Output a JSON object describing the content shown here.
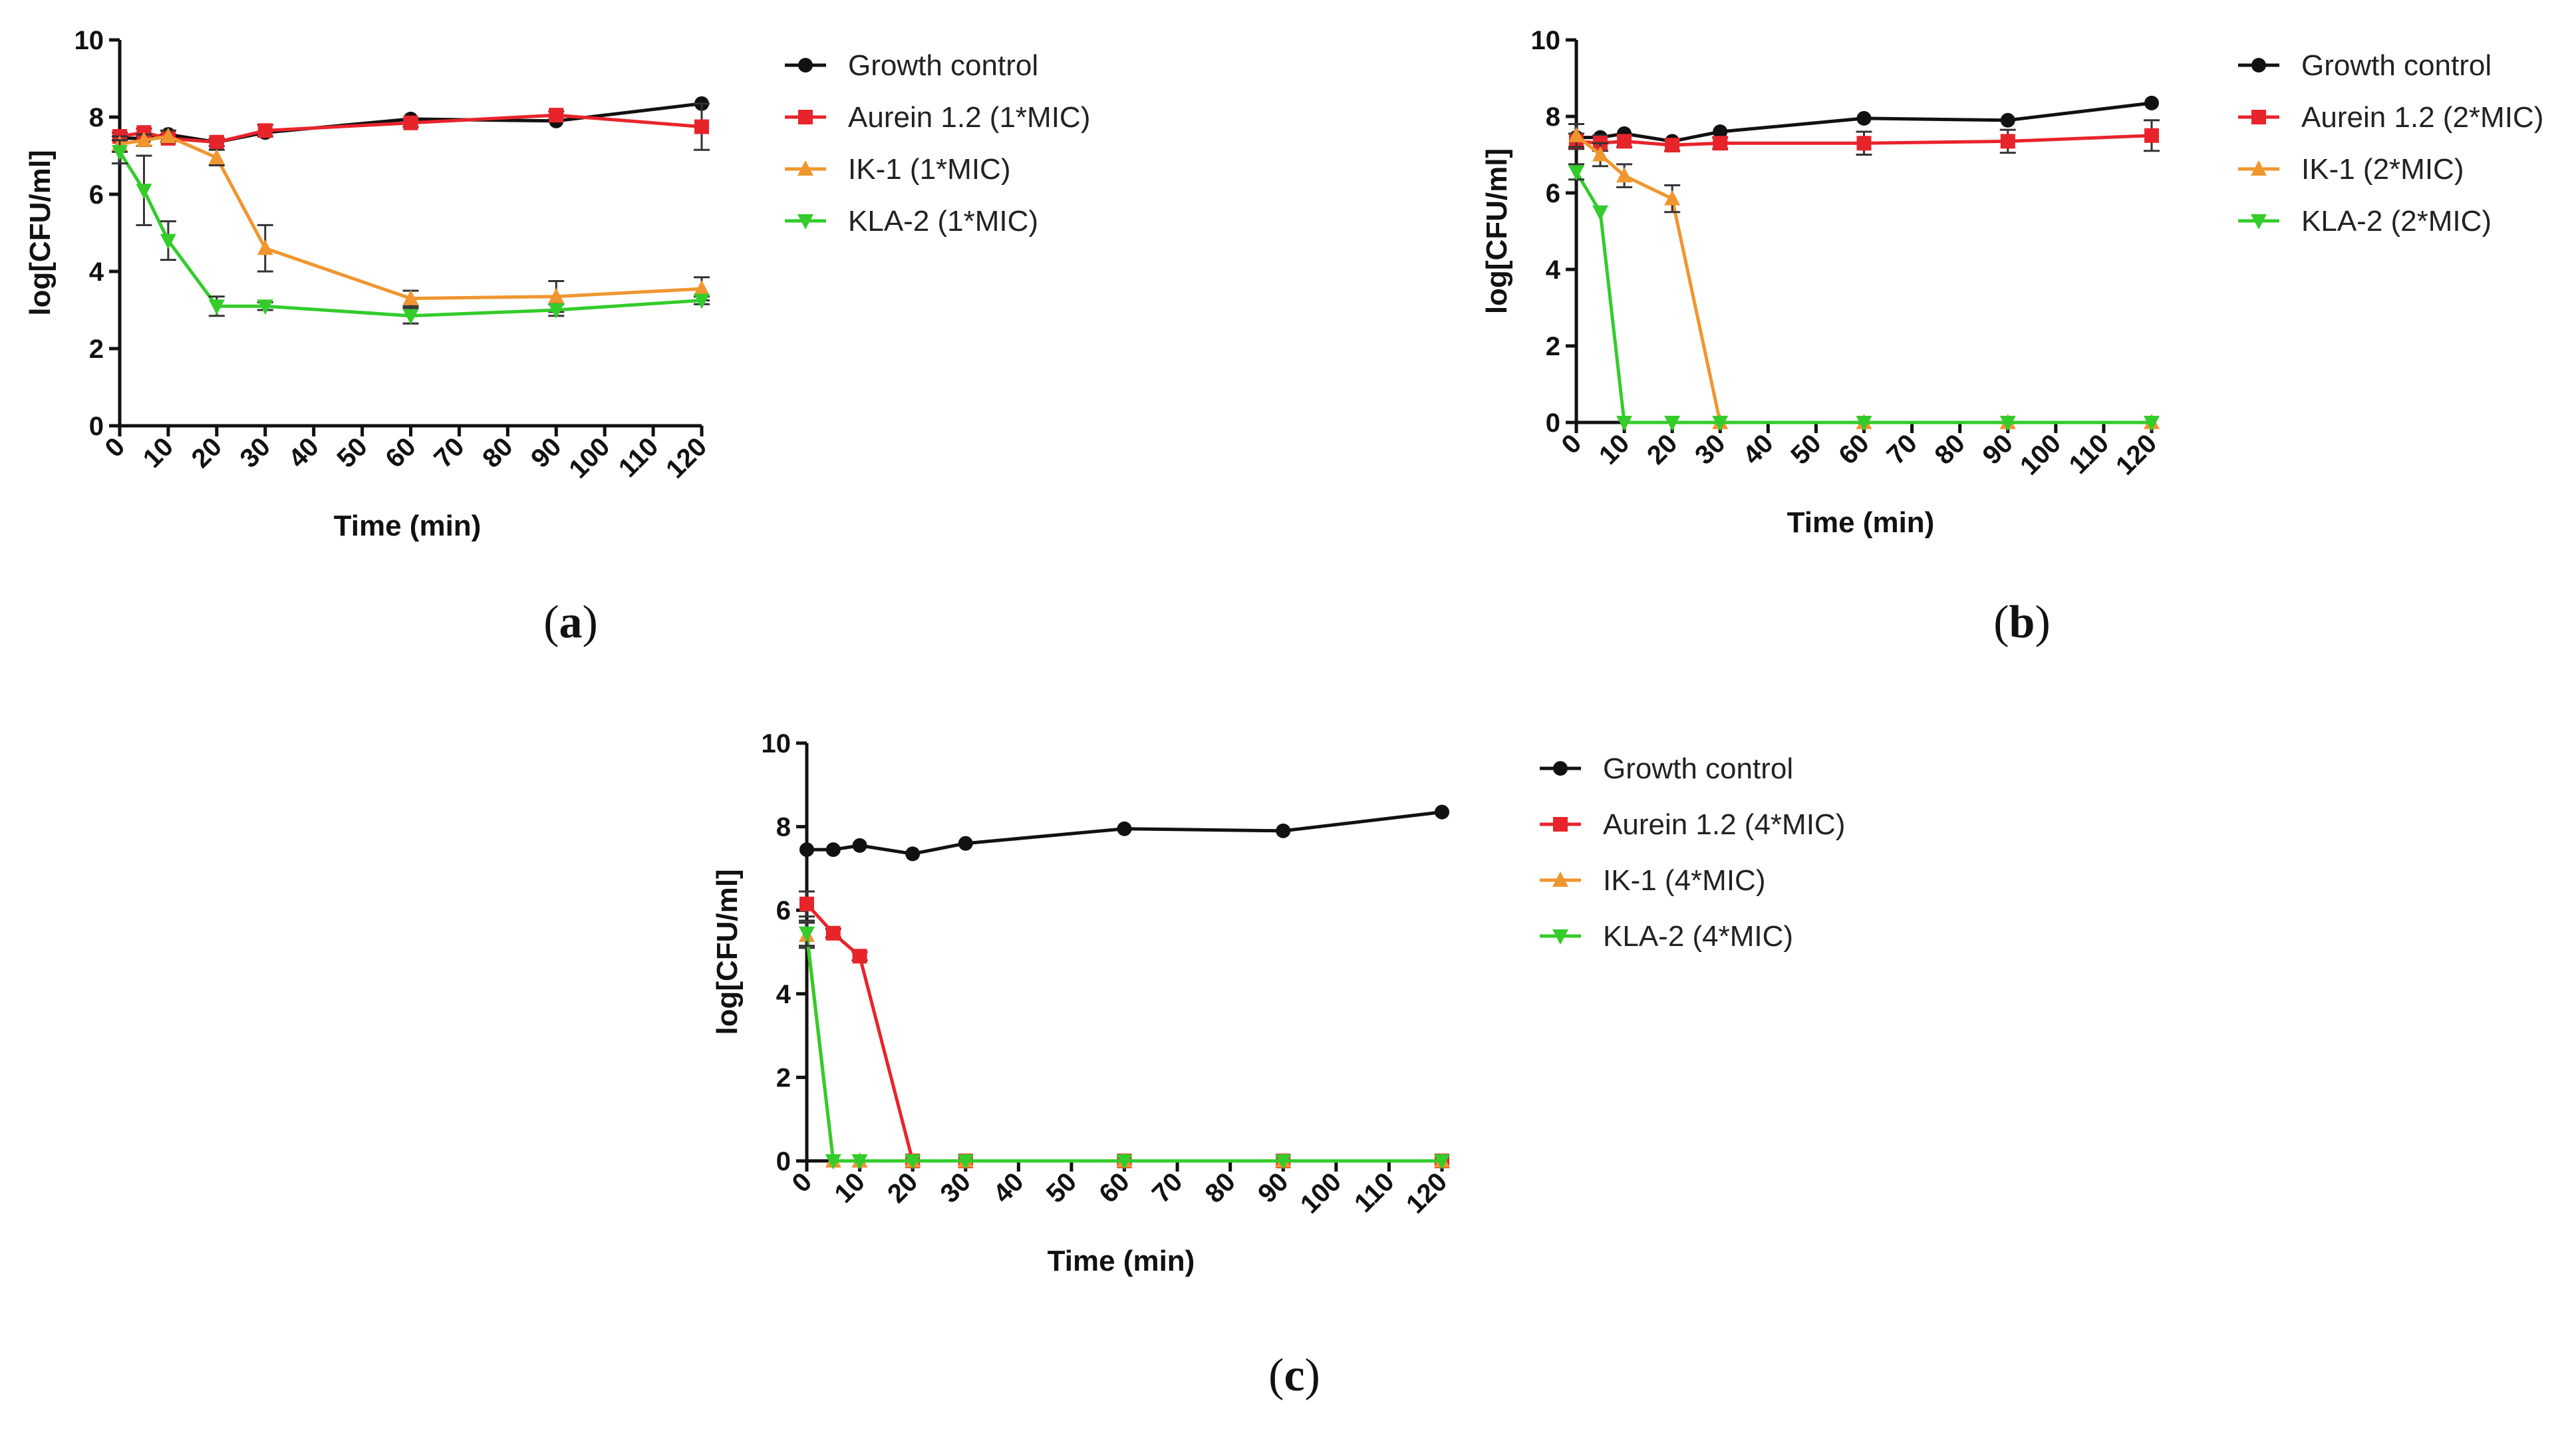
{
  "figure": {
    "panel_labels": [
      "(a)",
      "(b)",
      "(c)"
    ]
  },
  "series_styles": {
    "Growth control": {
      "color": "#111111",
      "marker": "circle"
    },
    "Aurein 1.2": {
      "color": "#e8242b",
      "marker": "square"
    },
    "IK-1": {
      "color": "#f0962f",
      "marker": "triangle-up"
    },
    "KLA-2": {
      "color": "#33cc2b",
      "marker": "triangle-down"
    }
  },
  "chart_data": [
    {
      "type": "line",
      "panel": "(a)",
      "xlabel": "Time (min)",
      "ylabel": "log[CFU/ml]",
      "xlim": [
        0,
        120
      ],
      "ylim": [
        0,
        10
      ],
      "x_ticks": [
        0,
        10,
        20,
        30,
        40,
        50,
        60,
        70,
        80,
        90,
        100,
        110,
        120
      ],
      "y_ticks": [
        0,
        2,
        4,
        6,
        8,
        10
      ],
      "legend_position": "right",
      "series": [
        {
          "name": "Growth control",
          "legend": "Growth control",
          "x": [
            0,
            5,
            10,
            20,
            30,
            60,
            90,
            120
          ],
          "values": [
            7.45,
            7.45,
            7.55,
            7.35,
            7.6,
            7.95,
            7.9,
            8.35
          ],
          "errors": [
            0,
            0,
            0,
            0,
            0,
            0,
            0,
            0
          ]
        },
        {
          "name": "Aurein 1.2",
          "legend": "Aurein 1.2 (1*MIC)",
          "x": [
            0,
            5,
            10,
            20,
            30,
            60,
            90,
            120
          ],
          "values": [
            7.5,
            7.6,
            7.45,
            7.35,
            7.65,
            7.85,
            8.05,
            7.75
          ],
          "errors": [
            0.1,
            0.1,
            0.1,
            0.1,
            0.15,
            0.1,
            0.1,
            0.6
          ]
        },
        {
          "name": "IK-1",
          "legend": "IK-1 (1*MIC)",
          "x": [
            0,
            5,
            10,
            20,
            30,
            60,
            90,
            120
          ],
          "values": [
            7.3,
            7.4,
            7.5,
            6.95,
            4.6,
            3.3,
            3.35,
            3.55
          ],
          "errors": [
            0.2,
            0.15,
            0.15,
            0.2,
            0.6,
            0.2,
            0.4,
            0.3
          ]
        },
        {
          "name": "KLA-2",
          "legend": "KLA-2 (1*MIC)",
          "x": [
            0,
            5,
            10,
            20,
            30,
            60,
            90,
            120
          ],
          "values": [
            7.1,
            6.1,
            4.8,
            3.1,
            3.1,
            2.85,
            3.0,
            3.25
          ],
          "errors": [
            0.3,
            0.9,
            0.5,
            0.25,
            0.1,
            0.2,
            0.15,
            0.1
          ]
        }
      ]
    },
    {
      "type": "line",
      "panel": "(b)",
      "xlabel": "Time (min)",
      "ylabel": "log[CFU/ml]",
      "xlim": [
        0,
        120
      ],
      "ylim": [
        0,
        10
      ],
      "x_ticks": [
        0,
        10,
        20,
        30,
        40,
        50,
        60,
        70,
        80,
        90,
        100,
        110,
        120
      ],
      "y_ticks": [
        0,
        2,
        4,
        6,
        8,
        10
      ],
      "legend_position": "right",
      "series": [
        {
          "name": "Growth control",
          "legend": "Growth control",
          "x": [
            0,
            5,
            10,
            20,
            30,
            60,
            90,
            120
          ],
          "values": [
            7.45,
            7.45,
            7.55,
            7.35,
            7.6,
            7.95,
            7.9,
            8.35
          ],
          "errors": [
            0,
            0,
            0,
            0,
            0,
            0,
            0,
            0
          ]
        },
        {
          "name": "Aurein 1.2",
          "legend": "Aurein 1.2 (2*MIC)",
          "x": [
            0,
            5,
            10,
            20,
            30,
            60,
            90,
            120
          ],
          "values": [
            7.35,
            7.3,
            7.35,
            7.25,
            7.3,
            7.3,
            7.35,
            7.5
          ],
          "errors": [
            0.2,
            0.2,
            0.15,
            0.15,
            0.15,
            0.3,
            0.3,
            0.4
          ]
        },
        {
          "name": "IK-1",
          "legend": "IK-1 (2*MIC)",
          "x": [
            0,
            5,
            10,
            20,
            30,
            60,
            90,
            120
          ],
          "values": [
            7.5,
            7.0,
            6.45,
            5.85,
            0,
            0,
            0,
            0
          ],
          "errors": [
            0.3,
            0.3,
            0.3,
            0.35,
            0,
            0,
            0,
            0
          ]
        },
        {
          "name": "KLA-2",
          "legend": "KLA-2 (2*MIC)",
          "x": [
            0,
            5,
            10,
            20,
            30,
            60,
            90,
            120
          ],
          "values": [
            6.55,
            5.5,
            0,
            0,
            0,
            0,
            0,
            0
          ],
          "errors": [
            0.2,
            0,
            0,
            0,
            0,
            0,
            0,
            0
          ]
        }
      ]
    },
    {
      "type": "line",
      "panel": "(c)",
      "xlabel": "Time (min)",
      "ylabel": "log[CFU/ml]",
      "xlim": [
        0,
        120
      ],
      "ylim": [
        0,
        10
      ],
      "x_ticks": [
        0,
        10,
        20,
        30,
        40,
        50,
        60,
        70,
        80,
        90,
        100,
        110,
        120
      ],
      "y_ticks": [
        0,
        2,
        4,
        6,
        8,
        10
      ],
      "legend_position": "right",
      "series": [
        {
          "name": "Growth control",
          "legend": "Growth control",
          "x": [
            0,
            5,
            10,
            20,
            30,
            60,
            90,
            120
          ],
          "values": [
            7.45,
            7.45,
            7.55,
            7.35,
            7.6,
            7.95,
            7.9,
            8.35
          ],
          "errors": [
            0,
            0,
            0,
            0,
            0,
            0,
            0,
            0
          ]
        },
        {
          "name": "Aurein 1.2",
          "legend": "Aurein 1.2 (4*MIC)",
          "x": [
            0,
            5,
            10,
            20,
            30,
            60,
            90,
            120
          ],
          "values": [
            6.15,
            5.45,
            4.9,
            0,
            0,
            0,
            0,
            0
          ],
          "errors": [
            0.3,
            0.1,
            0.1,
            0,
            0,
            0,
            0,
            0
          ]
        },
        {
          "name": "IK-1",
          "legend": "IK-1 (4*MIC)",
          "x": [
            0,
            5,
            10,
            20,
            30,
            60,
            90,
            120
          ],
          "values": [
            5.4,
            0,
            0,
            0,
            0,
            0,
            0,
            0
          ],
          "errors": [
            0.3,
            0,
            0,
            0,
            0,
            0,
            0,
            0
          ]
        },
        {
          "name": "KLA-2",
          "legend": "KLA-2 (4*MIC)",
          "x": [
            0,
            5,
            10,
            20,
            30,
            60,
            90,
            120
          ],
          "values": [
            5.45,
            0,
            0,
            0,
            0,
            0,
            0,
            0
          ],
          "errors": [
            0.3,
            0,
            0,
            0,
            0,
            0,
            0,
            0
          ]
        }
      ]
    }
  ]
}
